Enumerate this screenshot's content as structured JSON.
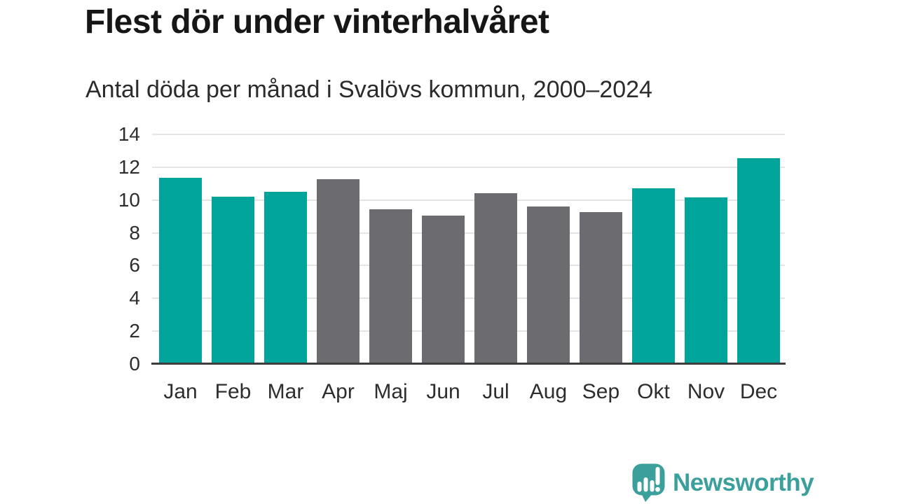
{
  "chart_data": {
    "type": "bar",
    "title": "Flest dör under vinterhalvåret",
    "subtitle": "Antal döda per månad i Svalövs kommun, 2000–2024",
    "categories": [
      "Jan",
      "Feb",
      "Mar",
      "Apr",
      "Maj",
      "Jun",
      "Jul",
      "Aug",
      "Sep",
      "Okt",
      "Nov",
      "Dec"
    ],
    "values": [
      11.35,
      10.2,
      10.5,
      11.25,
      9.45,
      9.05,
      10.4,
      9.6,
      9.25,
      10.7,
      10.15,
      12.55
    ],
    "groups": [
      "winter",
      "winter",
      "winter",
      "summer",
      "summer",
      "summer",
      "summer",
      "summer",
      "summer",
      "winter",
      "winter",
      "winter"
    ],
    "colors": {
      "winter": "#00a49b",
      "summer": "#6b6b70"
    },
    "xlabel": "",
    "ylabel": "",
    "ylim": [
      0,
      14
    ],
    "yticks": [
      0,
      2,
      4,
      6,
      8,
      10,
      12,
      14
    ],
    "grid": true,
    "legend_position": "none"
  },
  "branding": {
    "logo_text": "Newsworthy",
    "logo_color": "#3b9f9c",
    "logo_icon": "bar-chart-speech-bubble-icon"
  }
}
